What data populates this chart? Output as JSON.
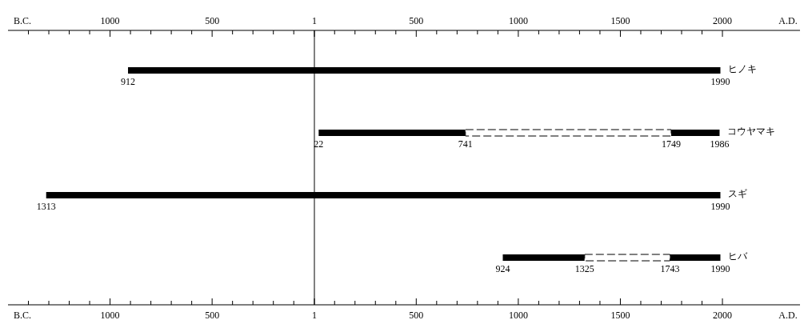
{
  "chart_data": {
    "type": "bar",
    "orientation": "horizontal",
    "categories": [
      "ヒノキ",
      "コウヤマキ",
      "スギ",
      "ヒバ"
    ],
    "series": [
      {
        "color": "#000000",
        "base": [
          -912,
          22,
          -1313,
          924
        ],
        "values": [
          2902,
          719,
          3303,
          401
        ]
      },
      {
        "color": "#ffffff",
        "line_style": "dashed",
        "base": [
          null,
          741,
          null,
          1325
        ],
        "values": [
          null,
          1008,
          null,
          418
        ]
      },
      {
        "color": "#000000",
        "base": [
          null,
          1749,
          null,
          1743
        ],
        "values": [
          null,
          237,
          null,
          247
        ]
      }
    ],
    "xlim": [
      -1500,
      2380
    ],
    "xticks": [
      {
        "value": -1400,
        "label": null
      },
      {
        "value": -1300,
        "label": null
      },
      {
        "value": -1200,
        "label": null
      },
      {
        "value": -1100,
        "label": null
      },
      {
        "value": -1000,
        "label": "1000"
      },
      {
        "value": -900,
        "label": null
      },
      {
        "value": -800,
        "label": null
      },
      {
        "value": -700,
        "label": null
      },
      {
        "value": -600,
        "label": null
      },
      {
        "value": -500,
        "label": "500"
      },
      {
        "value": -400,
        "label": null
      },
      {
        "value": -300,
        "label": null
      },
      {
        "value": -200,
        "label": null
      },
      {
        "value": -100,
        "label": null
      },
      1,
      {
        "value": 100,
        "label": null
      },
      {
        "value": 200,
        "label": null
      },
      {
        "value": 300,
        "label": null
      },
      {
        "value": 400,
        "label": null
      },
      500,
      {
        "value": 600,
        "label": null
      },
      {
        "value": 700,
        "label": null
      },
      {
        "value": 800,
        "label": null
      },
      {
        "value": 900,
        "label": null
      },
      1000,
      {
        "value": 1100,
        "label": null
      },
      {
        "value": 1200,
        "label": null
      },
      {
        "value": 1300,
        "label": null
      },
      {
        "value": 1400,
        "label": null
      },
      1500,
      {
        "value": 1600,
        "label": null
      },
      {
        "value": 1700,
        "label": null
      },
      {
        "value": 1800,
        "label": null
      },
      {
        "value": 1900,
        "label": null
      },
      2000
    ],
    "x2lim": [
      -1500,
      2380
    ],
    "x2ticks": [
      {
        "value": -1400,
        "label": null
      },
      {
        "value": -1300,
        "label": null
      },
      {
        "value": -1200,
        "label": null
      },
      {
        "value": -1100,
        "label": null
      },
      {
        "value": -1000,
        "label": "1000"
      },
      {
        "value": -900,
        "label": null
      },
      {
        "value": -800,
        "label": null
      },
      {
        "value": -700,
        "label": null
      },
      {
        "value": -600,
        "label": null
      },
      {
        "value": -500,
        "label": "500"
      },
      {
        "value": -400,
        "label": null
      },
      {
        "value": -300,
        "label": null
      },
      {
        "value": -200,
        "label": null
      },
      {
        "value": -100,
        "label": null
      },
      1,
      {
        "value": 100,
        "label": null
      },
      {
        "value": 200,
        "label": null
      },
      {
        "value": 300,
        "label": null
      },
      {
        "value": 400,
        "label": null
      },
      500,
      {
        "value": 600,
        "label": null
      },
      {
        "value": 700,
        "label": null
      },
      {
        "value": 800,
        "label": null
      },
      {
        "value": 900,
        "label": null
      },
      1000,
      {
        "value": 1100,
        "label": null
      },
      {
        "value": 1200,
        "label": null
      },
      {
        "value": 1300,
        "label": null
      },
      {
        "value": 1400,
        "label": null
      },
      1500,
      {
        "value": 1600,
        "label": null
      },
      {
        "value": 1700,
        "label": null
      },
      {
        "value": 1800,
        "label": null
      },
      {
        "value": 1900,
        "label": null
      },
      2000
    ],
    "ref_lines": [
      {
        "axis": "x",
        "value": 1,
        "color": "#000000"
      }
    ],
    "grid": false,
    "annotations": [
      "B.C.",
      "A.D.",
      "B.C.",
      "A.D.",
      {
        "text": "912",
        "x": -912,
        "y": "ヒノキ"
      },
      {
        "text": "1990",
        "x": 1990,
        "y": "ヒノキ"
      },
      {
        "text": "22",
        "x": 22,
        "y": "コウヤマキ"
      },
      {
        "text": "741",
        "x": 741,
        "y": "コウヤマキ"
      },
      {
        "text": "1749",
        "x": 1749,
        "y": "コウヤマキ"
      },
      {
        "text": "1986",
        "x": 1986,
        "y": "コウヤマキ"
      },
      {
        "text": "1313",
        "x": -1313,
        "y": "スギ"
      },
      {
        "text": "1990",
        "x": 1990,
        "y": "スギ"
      },
      {
        "text": "924",
        "x": 924,
        "y": "ヒバ"
      },
      {
        "text": "1325",
        "x": 1325,
        "y": "ヒバ"
      },
      {
        "text": "1743",
        "x": 1743,
        "y": "ヒバ"
      },
      {
        "text": "1990",
        "x": 1990,
        "y": "ヒバ"
      }
    ]
  }
}
